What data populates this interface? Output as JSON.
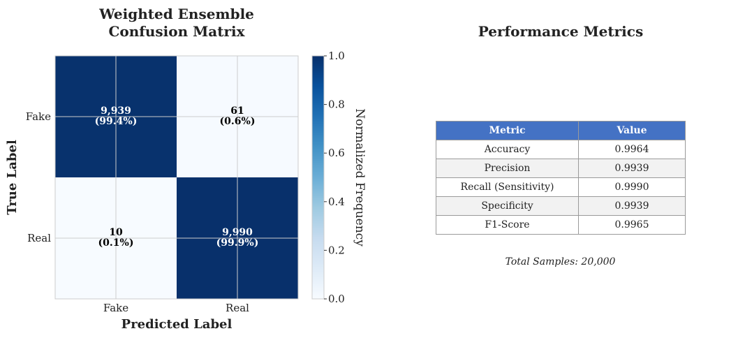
{
  "chart_data": [
    {
      "type": "heatmap",
      "title": "Weighted Ensemble\nConfusion Matrix",
      "xlabel": "Predicted Label",
      "ylabel": "True Label",
      "x_categories": [
        "Fake",
        "Real"
      ],
      "y_categories": [
        "Fake",
        "Real"
      ],
      "counts": [
        [
          9939,
          61
        ],
        [
          10,
          9990
        ]
      ],
      "normalized": [
        [
          0.994,
          0.006
        ],
        [
          0.001,
          0.999
        ]
      ],
      "cell_labels": [
        [
          [
            "9,939",
            "(99.4%)"
          ],
          [
            "61",
            "(0.6%)"
          ]
        ],
        [
          [
            "10",
            "(0.1%)"
          ],
          [
            "9,990",
            "(99.9%)"
          ]
        ]
      ],
      "colorbar": {
        "label": "Normalized Frequency",
        "range": [
          0.0,
          1.0
        ],
        "ticks": [
          "0.0",
          "0.2",
          "0.4",
          "0.6",
          "0.8",
          "1.0"
        ],
        "colormap": "Blues"
      },
      "grid": true
    },
    {
      "type": "table",
      "title": "Performance Metrics",
      "columns": [
        "Metric",
        "Value"
      ],
      "rows": [
        [
          "Accuracy",
          "0.9964"
        ],
        [
          "Precision",
          "0.9939"
        ],
        [
          "Recall (Sensitivity)",
          "0.9990"
        ],
        [
          "Specificity",
          "0.9939"
        ],
        [
          "F1-Score",
          "0.9965"
        ]
      ],
      "header_color": "#4472c4",
      "footnote": "Total Samples: 20,000"
    }
  ]
}
